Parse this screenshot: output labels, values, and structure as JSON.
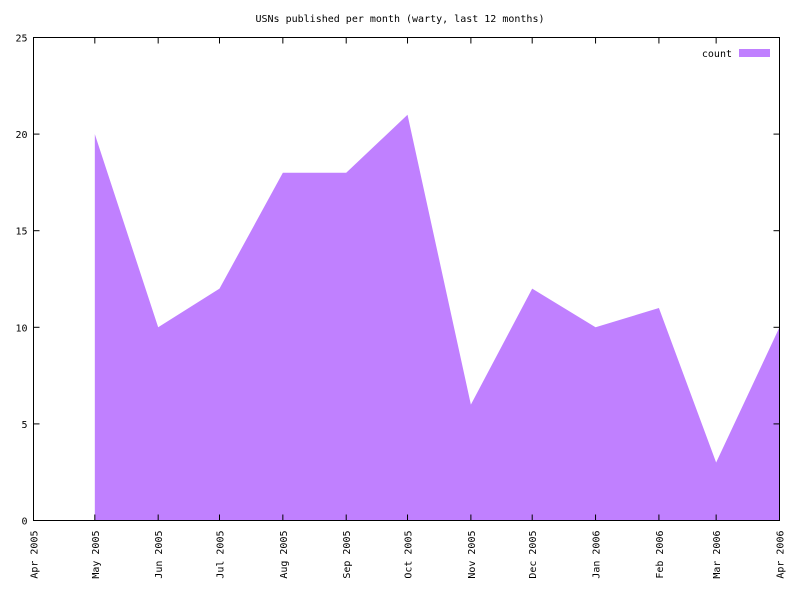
{
  "chart_data": {
    "type": "area",
    "title": "USNs published per month (warty, last 12 months)",
    "x": [
      "2005-05",
      "2005-06",
      "2005-07",
      "2005-08",
      "2005-09",
      "2005-10",
      "2005-11",
      "2005-12",
      "2006-01",
      "2006-02",
      "2006-03",
      "2006-04"
    ],
    "series": [
      {
        "name": "count",
        "color": "#c080ff",
        "values": [
          20,
          10,
          12,
          18,
          18,
          21,
          6,
          12,
          10,
          11,
          3,
          10
        ]
      }
    ],
    "xlim": [
      "2005-04",
      "2006-04"
    ],
    "xticks": [
      {
        "value": "2005-04",
        "label": "Apr 2005"
      },
      {
        "value": "2005-05",
        "label": "May 2005"
      },
      {
        "value": "2005-06",
        "label": "Jun 2005"
      },
      {
        "value": "2005-07",
        "label": "Jul 2005"
      },
      {
        "value": "2005-08",
        "label": "Aug 2005"
      },
      {
        "value": "2005-09",
        "label": "Sep 2005"
      },
      {
        "value": "2005-10",
        "label": "Oct 2005"
      },
      {
        "value": "2005-11",
        "label": "Nov 2005"
      },
      {
        "value": "2005-12",
        "label": "Dec 2005"
      },
      {
        "value": "2006-01",
        "label": "Jan 2006"
      },
      {
        "value": "2006-02",
        "label": "Feb 2006"
      },
      {
        "value": "2006-03",
        "label": "Mar 2006"
      },
      {
        "value": "2006-04",
        "label": "Apr 2006"
      }
    ],
    "ylim": [
      0,
      25
    ],
    "yticks": [
      0,
      5,
      10,
      15,
      20,
      25
    ],
    "legend": "top-right"
  }
}
